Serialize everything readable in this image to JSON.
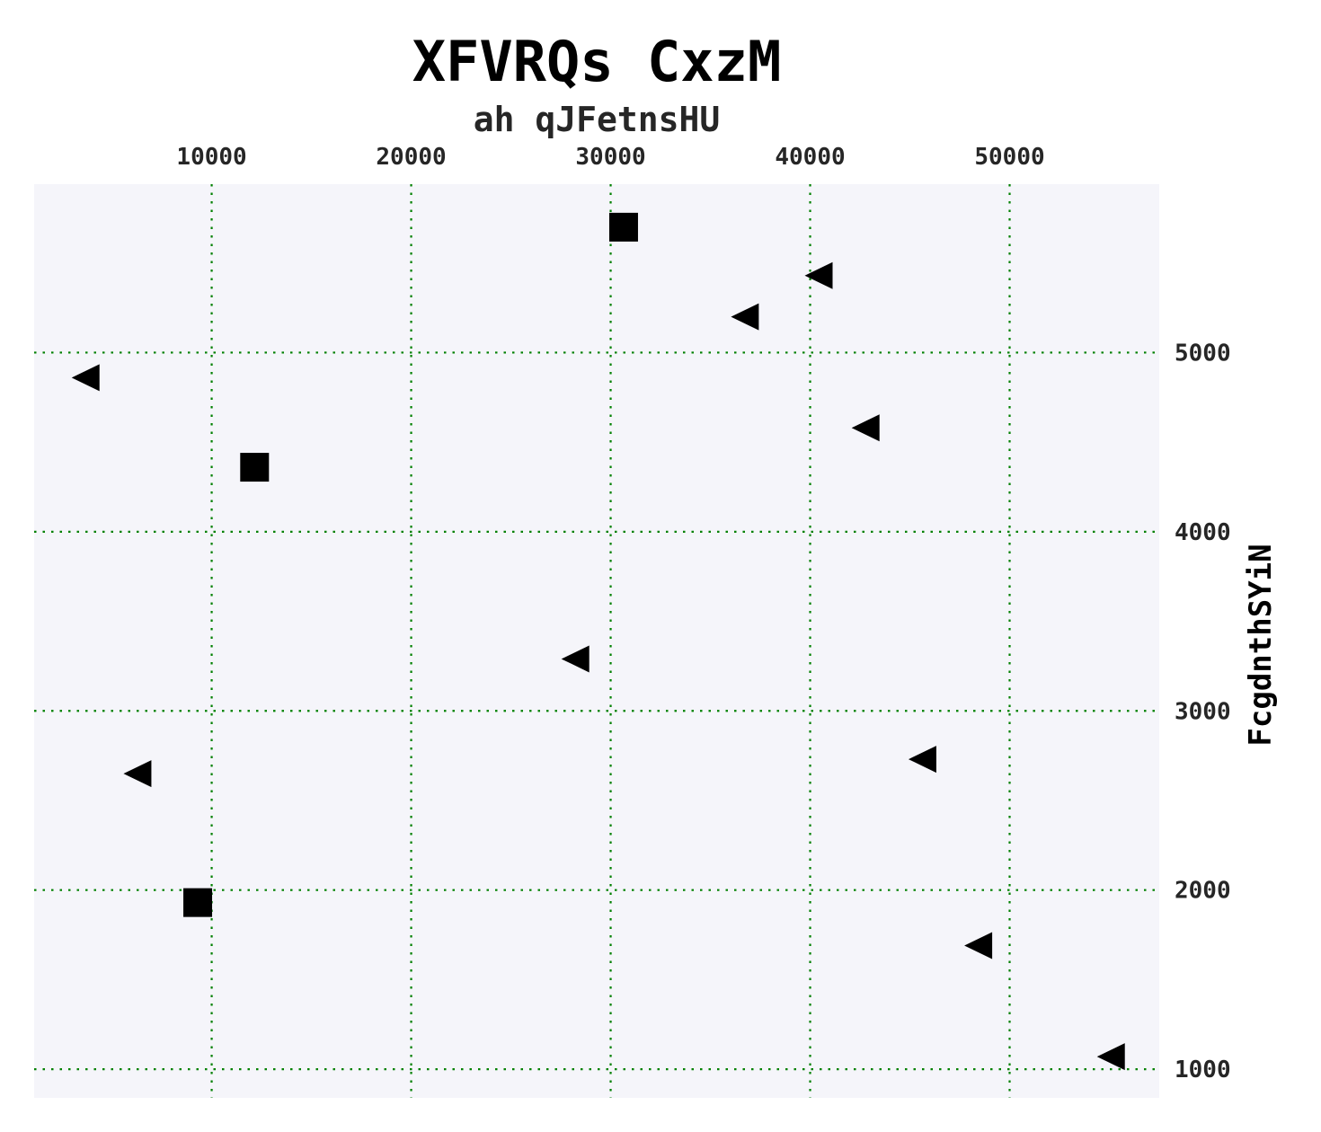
{
  "chart_data": {
    "type": "scatter",
    "title": "XFVRQs CxzM",
    "subtitle": "ah qJFetnsHU",
    "xlabel": "",
    "ylabel": "FcgdnthSYiN",
    "x_axis_position": "top",
    "y_axis_position": "right",
    "xlim": [
      1100,
      57500
    ],
    "ylim": [
      840,
      5940
    ],
    "x_ticks": [
      10000,
      20000,
      30000,
      40000,
      50000
    ],
    "y_ticks": [
      1000,
      2000,
      3000,
      4000,
      5000
    ],
    "x_tick_labels": [
      "10000",
      "20000",
      "30000",
      "40000",
      "50000"
    ],
    "y_tick_labels": [
      "1000",
      "2000",
      "3000",
      "4000",
      "5000"
    ],
    "grid": true,
    "grid_color": "#008000",
    "plot_background": "#f5f5fa",
    "marker_color": "#000000",
    "series": [
      {
        "marker": "square",
        "points": [
          {
            "x": 30650,
            "y": 5700
          },
          {
            "x": 12150,
            "y": 4360
          },
          {
            "x": 9300,
            "y": 1930
          }
        ]
      },
      {
        "marker": "triangle-left",
        "points": [
          {
            "x": 40450,
            "y": 5430
          },
          {
            "x": 36750,
            "y": 5200
          },
          {
            "x": 3700,
            "y": 4860
          },
          {
            "x": 42800,
            "y": 4580
          },
          {
            "x": 28250,
            "y": 3290
          },
          {
            "x": 6300,
            "y": 2650
          },
          {
            "x": 45650,
            "y": 2730
          },
          {
            "x": 48450,
            "y": 1690
          },
          {
            "x": 55100,
            "y": 1070
          }
        ]
      }
    ]
  }
}
